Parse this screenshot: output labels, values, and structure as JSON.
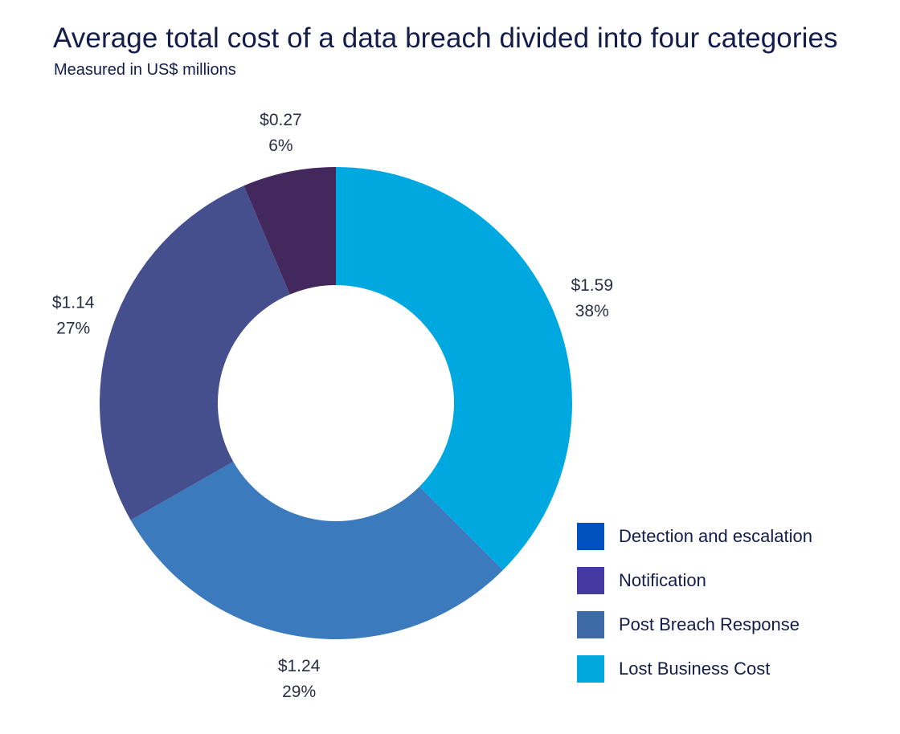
{
  "chart_data": {
    "type": "pie",
    "variant": "donut",
    "title": "Average total cost of a data breach divided into four categories",
    "subtitle": "Measured in US$ millions",
    "legend_position": "bottom-right",
    "slices": [
      {
        "name": "Lost Business Cost",
        "value": 1.59,
        "value_label": "$1.59",
        "percent": 38,
        "percent_label": "38%",
        "color": "#00a8e0"
      },
      {
        "name": "Post Breach Response",
        "value": 1.24,
        "value_label": "$1.24",
        "percent": 29,
        "percent_label": "29%",
        "color": "#3a7abd"
      },
      {
        "name": "Detection and escalation",
        "value": 1.14,
        "value_label": "$1.14",
        "percent": 27,
        "percent_label": "27%",
        "color": "#464f8e"
      },
      {
        "name": "Notification",
        "value": 0.27,
        "value_label": "$0.27",
        "percent": 6,
        "percent_label": "6%",
        "color": "#43285e"
      }
    ],
    "legend": [
      {
        "label": "Detection and escalation",
        "color": "#0051c0"
      },
      {
        "label": "Notification",
        "color": "#4538a0"
      },
      {
        "label": "Post Breach Response",
        "color": "#3f6aa8"
      },
      {
        "label": "Lost Business Cost",
        "color": "#00a8e0"
      }
    ]
  }
}
